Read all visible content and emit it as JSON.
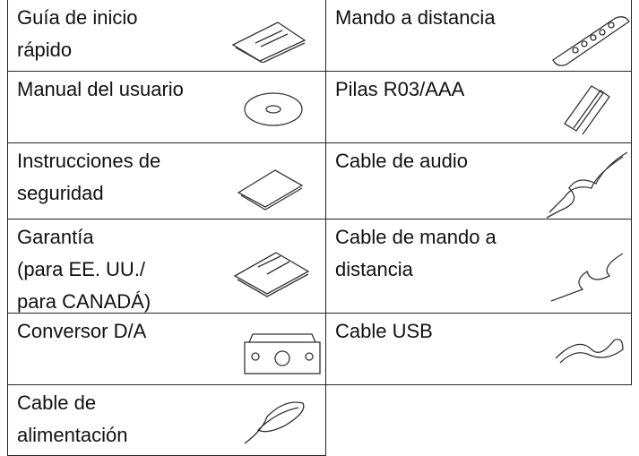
{
  "table": {
    "rows": [
      [
        {
          "lines": [
            "Guía de inicio",
            "rápido"
          ]
        },
        {
          "lines": [
            "Mando a distancia"
          ]
        }
      ],
      [
        {
          "lines": [
            "Manual del usuario"
          ]
        },
        {
          "lines": [
            "Pilas R03/AAA"
          ]
        }
      ],
      [
        {
          "lines": [
            "Instrucciones de",
            "seguridad"
          ]
        },
        {
          "lines": [
            "Cable de audio"
          ]
        }
      ],
      [
        {
          "lines": [
            "Garantía",
            "(para EE. UU./",
            "para CANADÁ)"
          ]
        },
        {
          "lines": [
            "Cable de mando a",
            "distancia"
          ]
        }
      ],
      [
        {
          "lines": [
            "Conversor D/A"
          ]
        },
        {
          "lines": [
            "Cable USB"
          ]
        }
      ],
      [
        {
          "lines": [
            "Cable de",
            "alimentación"
          ]
        }
      ]
    ]
  }
}
